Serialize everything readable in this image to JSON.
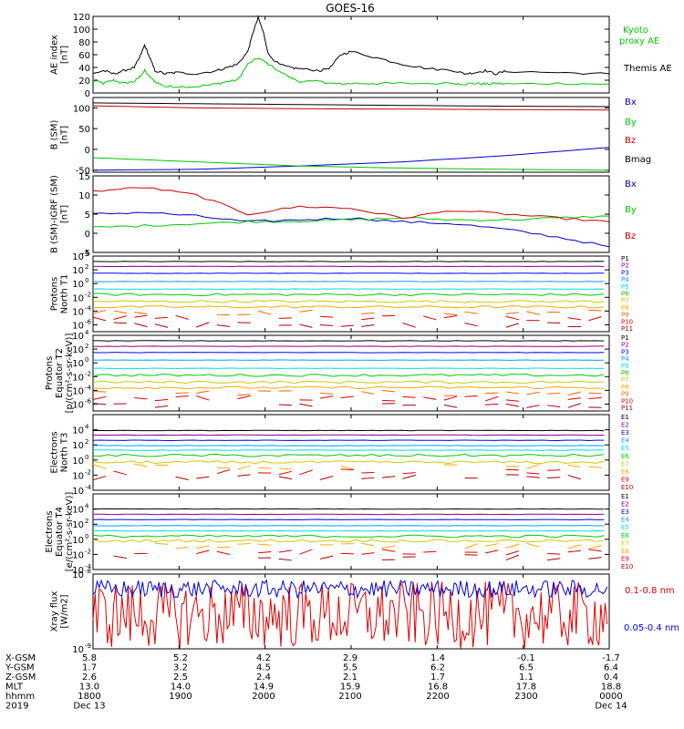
{
  "chart_data": {
    "type": "line",
    "title": "GOES-16",
    "panels": [
      {
        "id": "ae",
        "ylabel": [
          "AE index",
          "[nT]"
        ],
        "yscale": "linear",
        "ylim": [
          0,
          120
        ],
        "yticks": [
          "0",
          "20",
          "40",
          "60",
          "80",
          "100",
          "120"
        ],
        "series": [
          {
            "name": "Kyoto proxy AE",
            "color": "#00c800",
            "dash": false,
            "x": [
              0,
              2,
              4,
              6,
              8,
              9,
              10,
              11,
              12,
              14,
              16,
              20,
              24,
              26,
              28,
              30,
              32,
              34,
              38,
              40,
              44,
              46,
              48,
              50,
              55,
              60,
              70,
              72,
              74,
              76,
              78,
              80,
              90,
              100
            ],
            "y": [
              20,
              15,
              20,
              15,
              18,
              25,
              35,
              25,
              18,
              10,
              10,
              10,
              14,
              18,
              20,
              45,
              55,
              45,
              25,
              18,
              18,
              15,
              14,
              15,
              15,
              15,
              15,
              14,
              15,
              14,
              15,
              14,
              15,
              14
            ]
          },
          {
            "name": "Themis AE",
            "color": "#000000",
            "dash": false,
            "x": [
              0,
              2,
              4,
              6,
              8,
              9,
              10,
              11,
              12,
              14,
              16,
              20,
              24,
              26,
              28,
              30,
              31,
              32,
              33,
              34,
              36,
              38,
              40,
              44,
              46,
              48,
              50,
              55,
              60,
              65,
              70,
              72,
              74,
              76,
              78,
              80,
              90,
              100
            ],
            "y": [
              30,
              35,
              30,
              35,
              40,
              55,
              75,
              55,
              35,
              30,
              32,
              30,
              35,
              40,
              45,
              65,
              95,
              118,
              95,
              60,
              45,
              40,
              38,
              35,
              40,
              60,
              65,
              55,
              45,
              38,
              35,
              30,
              32,
              35,
              30,
              34,
              32,
              30
            ]
          }
        ]
      },
      {
        "id": "bsm",
        "ylabel": [
          "B (SM)",
          "[nT]"
        ],
        "yscale": "linear",
        "ylim": [
          -55,
          125
        ],
        "yticks": [
          "-50",
          "0",
          "50",
          "100"
        ],
        "series": [
          {
            "name": "Bx",
            "color": "#0000c8",
            "x": [
              0,
              20,
              40,
              60,
              80,
              100
            ],
            "y": [
              -50,
              -48,
              -40,
              -30,
              -15,
              5
            ]
          },
          {
            "name": "By",
            "color": "#00c800",
            "x": [
              0,
              20,
              40,
              60,
              80,
              100
            ],
            "y": [
              -20,
              -30,
              -40,
              -45,
              -48,
              -50
            ]
          },
          {
            "name": "Bz",
            "color": "#c80000",
            "x": [
              0,
              20,
              40,
              60,
              80,
              100
            ],
            "y": [
              105,
              100,
              98,
              97,
              96,
              95
            ]
          },
          {
            "name": "Bmag",
            "color": "#000000",
            "x": [
              0,
              20,
              40,
              60,
              80,
              100
            ],
            "y": [
              112,
              110,
              108,
              106,
              104,
              103
            ]
          }
        ]
      },
      {
        "id": "bigrf",
        "ylabel": [
          "B (SM)-IGRF (SM)",
          "[nT]"
        ],
        "yscale": "linear",
        "ylim": [
          -5,
          15
        ],
        "yticks": [
          "-5",
          "0",
          "5",
          "10",
          "15"
        ],
        "series": [
          {
            "name": "Bx",
            "color": "#0000c8",
            "x": [
              0,
              10,
              20,
              30,
              40,
              50,
              60,
              70,
              80,
              90,
              100
            ],
            "y": [
              5,
              5.5,
              4.5,
              3,
              3.5,
              4,
              3,
              2.5,
              1,
              -1,
              -3.5
            ]
          },
          {
            "name": "By",
            "color": "#00c800",
            "x": [
              0,
              10,
              20,
              30,
              40,
              50,
              60,
              70,
              80,
              90,
              100
            ],
            "y": [
              1.5,
              2,
              2.5,
              3,
              3.2,
              3.5,
              4,
              3.5,
              3.5,
              4,
              4.5
            ]
          },
          {
            "name": "Bz",
            "color": "#c80000",
            "x": [
              0,
              10,
              20,
              30,
              40,
              50,
              60,
              70,
              80,
              90,
              100
            ],
            "y": [
              11,
              12,
              10,
              5,
              7,
              6.5,
              4,
              6,
              5,
              4,
              3
            ]
          }
        ]
      },
      {
        "id": "pn",
        "ylabel": [
          "Protons",
          "North T1"
        ],
        "yscale": "log",
        "ylim": [
          -7,
          4
        ],
        "yticks_exp": [
          4,
          2,
          0,
          -2,
          -4,
          -6
        ],
        "channels": [
          {
            "name": "P1",
            "color": "#000000",
            "level": 3.2
          },
          {
            "name": "P2",
            "color": "#880088",
            "level": 2.5
          },
          {
            "name": "P3",
            "color": "#0000ff",
            "level": 1.5
          },
          {
            "name": "P4",
            "color": "#00a0ff",
            "level": 0.3
          },
          {
            "name": "P5",
            "color": "#00dddd",
            "level": -0.8
          },
          {
            "name": "P6",
            "color": "#00cc00",
            "level": -1.6
          },
          {
            "name": "P7",
            "color": "#cccc00",
            "level": -2.6
          },
          {
            "name": "P8",
            "color": "#ffaa00",
            "level": -3.4
          },
          {
            "name": "P9",
            "color": "#ff6600",
            "level": -4.2
          },
          {
            "name": "P10",
            "color": "#dd0000",
            "level": -5.0
          },
          {
            "name": "P11",
            "color": "#aa0000",
            "level": -6.0
          }
        ]
      },
      {
        "id": "pe",
        "ylabel": [
          "Protons",
          "Equator T2",
          "[p/(cm²-s-sr-keV)]"
        ],
        "yscale": "log",
        "ylim": [
          -7,
          4
        ],
        "yticks_exp": [
          4,
          2,
          0,
          -2,
          -4,
          -6
        ],
        "channels": [
          {
            "name": "P1",
            "color": "#000000",
            "level": 3.2
          },
          {
            "name": "P2",
            "color": "#880088",
            "level": 2.4
          },
          {
            "name": "P3",
            "color": "#0000ff",
            "level": 1.5
          },
          {
            "name": "P4",
            "color": "#00a0ff",
            "level": 0.4
          },
          {
            "name": "P5",
            "color": "#00dddd",
            "level": -0.8
          },
          {
            "name": "P6",
            "color": "#00cc00",
            "level": -1.8
          },
          {
            "name": "P7",
            "color": "#cccc00",
            "level": -2.8
          },
          {
            "name": "P8",
            "color": "#ffaa00",
            "level": -3.6
          },
          {
            "name": "P9",
            "color": "#ff6600",
            "level": -4.4
          },
          {
            "name": "P10",
            "color": "#dd0000",
            "level": -5.2
          },
          {
            "name": "P11",
            "color": "#aa0000",
            "level": -6.2
          }
        ]
      },
      {
        "id": "en",
        "ylabel": [
          "Electrons",
          "North T3"
        ],
        "yscale": "log",
        "ylim": [
          -4,
          6
        ],
        "yticks_exp": [
          4,
          2,
          0,
          -2,
          -4
        ],
        "channels": [
          {
            "name": "E1",
            "color": "#000000",
            "level": 3.9
          },
          {
            "name": "E2",
            "color": "#880088",
            "level": 3.3
          },
          {
            "name": "E3",
            "color": "#0000ff",
            "level": 2.6
          },
          {
            "name": "E4",
            "color": "#00a0ff",
            "level": 1.9
          },
          {
            "name": "E5",
            "color": "#00dddd",
            "level": 1.3
          },
          {
            "name": "E6",
            "color": "#00cc00",
            "level": 0.6
          },
          {
            "name": "E7",
            "color": "#cccc00",
            "level": -0.3
          },
          {
            "name": "E8",
            "color": "#ffaa00",
            "level": -0.9
          },
          {
            "name": "E9",
            "color": "#dd0000",
            "level": -1.6
          },
          {
            "name": "E10",
            "color": "#aa0000",
            "level": -2.3
          }
        ]
      },
      {
        "id": "ee",
        "ylabel": [
          "Electrons",
          "Equator T4",
          "[e/(cm²-s-sr-keV)]"
        ],
        "yscale": "log",
        "ylim": [
          -4,
          6
        ],
        "yticks_exp": [
          4,
          2,
          0,
          -2,
          -4
        ],
        "channels": [
          {
            "name": "E1",
            "color": "#000000",
            "level": 4.0
          },
          {
            "name": "E2",
            "color": "#880088",
            "level": 3.3
          },
          {
            "name": "E3",
            "color": "#0000ff",
            "level": 2.6
          },
          {
            "name": "E4",
            "color": "#00a0ff",
            "level": 1.8
          },
          {
            "name": "E5",
            "color": "#00dddd",
            "level": 1.1
          },
          {
            "name": "E6",
            "color": "#00cc00",
            "level": 0.4
          },
          {
            "name": "E7",
            "color": "#cccc00",
            "level": -0.2
          },
          {
            "name": "E8",
            "color": "#ffaa00",
            "level": -0.9
          },
          {
            "name": "E9",
            "color": "#dd0000",
            "level": -1.7
          },
          {
            "name": "E10",
            "color": "#aa0000",
            "level": -2.4
          }
        ]
      },
      {
        "id": "xray",
        "ylabel": [
          "Xray flux",
          "[W/m2]"
        ],
        "yscale": "log",
        "ylim": [
          -9,
          -8
        ],
        "yticks_exp": [
          -8,
          -9
        ],
        "series": [
          {
            "name": "0.1-0.8 nm",
            "color": "#dd0000",
            "level": -8.55
          },
          {
            "name": "0.05-0.4 nm",
            "color": "#0000dd",
            "level": -8.2
          }
        ]
      }
    ],
    "x_axis": {
      "row_labels": [
        "X-GSM",
        "Y-GSM",
        "Z-GSM",
        "MLT",
        "hhmm",
        "2019"
      ],
      "columns": [
        [
          "5.8",
          "1.7",
          "2.6",
          "13.0",
          "1800",
          "Dec 13"
        ],
        [
          "5.2",
          "3.2",
          "2.5",
          "14.0",
          "1900",
          ""
        ],
        [
          "4.2",
          "4.5",
          "2.4",
          "14.9",
          "2000",
          ""
        ],
        [
          "2.9",
          "5.5",
          "2.1",
          "15.9",
          "2100",
          ""
        ],
        [
          "1.4",
          "6.2",
          "1.7",
          "16.8",
          "2200",
          ""
        ],
        [
          "-0.1",
          "6.5",
          "1.1",
          "17.8",
          "2300",
          ""
        ],
        [
          "-1.7",
          "6.4",
          "0.4",
          "18.8",
          "0000",
          "Dec 14"
        ]
      ]
    }
  }
}
